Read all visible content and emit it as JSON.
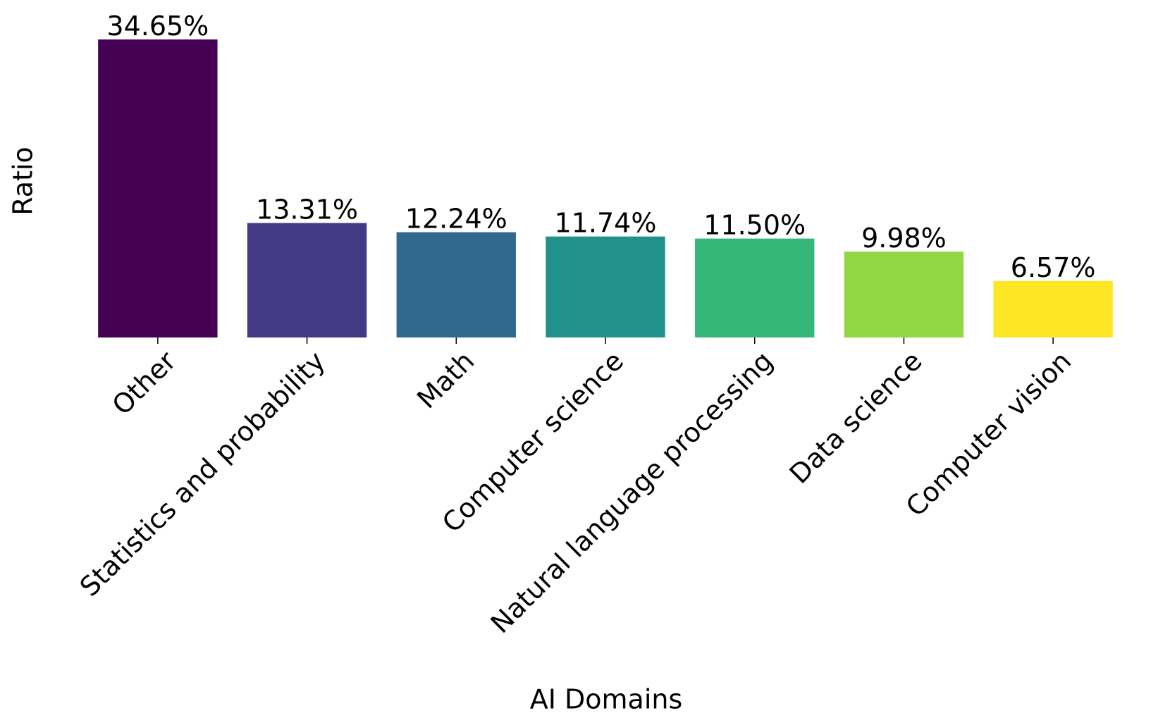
{
  "chart_data": {
    "type": "bar",
    "x_label": "AI Domains",
    "y_label": "Ratio",
    "categories": [
      "Other",
      "Statistics and probability",
      "Math",
      "Computer science",
      "Natural language processing",
      "Data science",
      "Computer vision"
    ],
    "values": [
      34.65,
      13.31,
      12.24,
      11.74,
      11.5,
      9.98,
      6.57
    ],
    "value_labels": [
      "34.65%",
      "13.31%",
      "12.24%",
      "11.74%",
      "11.50%",
      "9.98%",
      "6.57%"
    ],
    "colors": [
      "#440154",
      "#443983",
      "#31688e",
      "#21918c",
      "#35b779",
      "#90d743",
      "#fde725"
    ]
  }
}
